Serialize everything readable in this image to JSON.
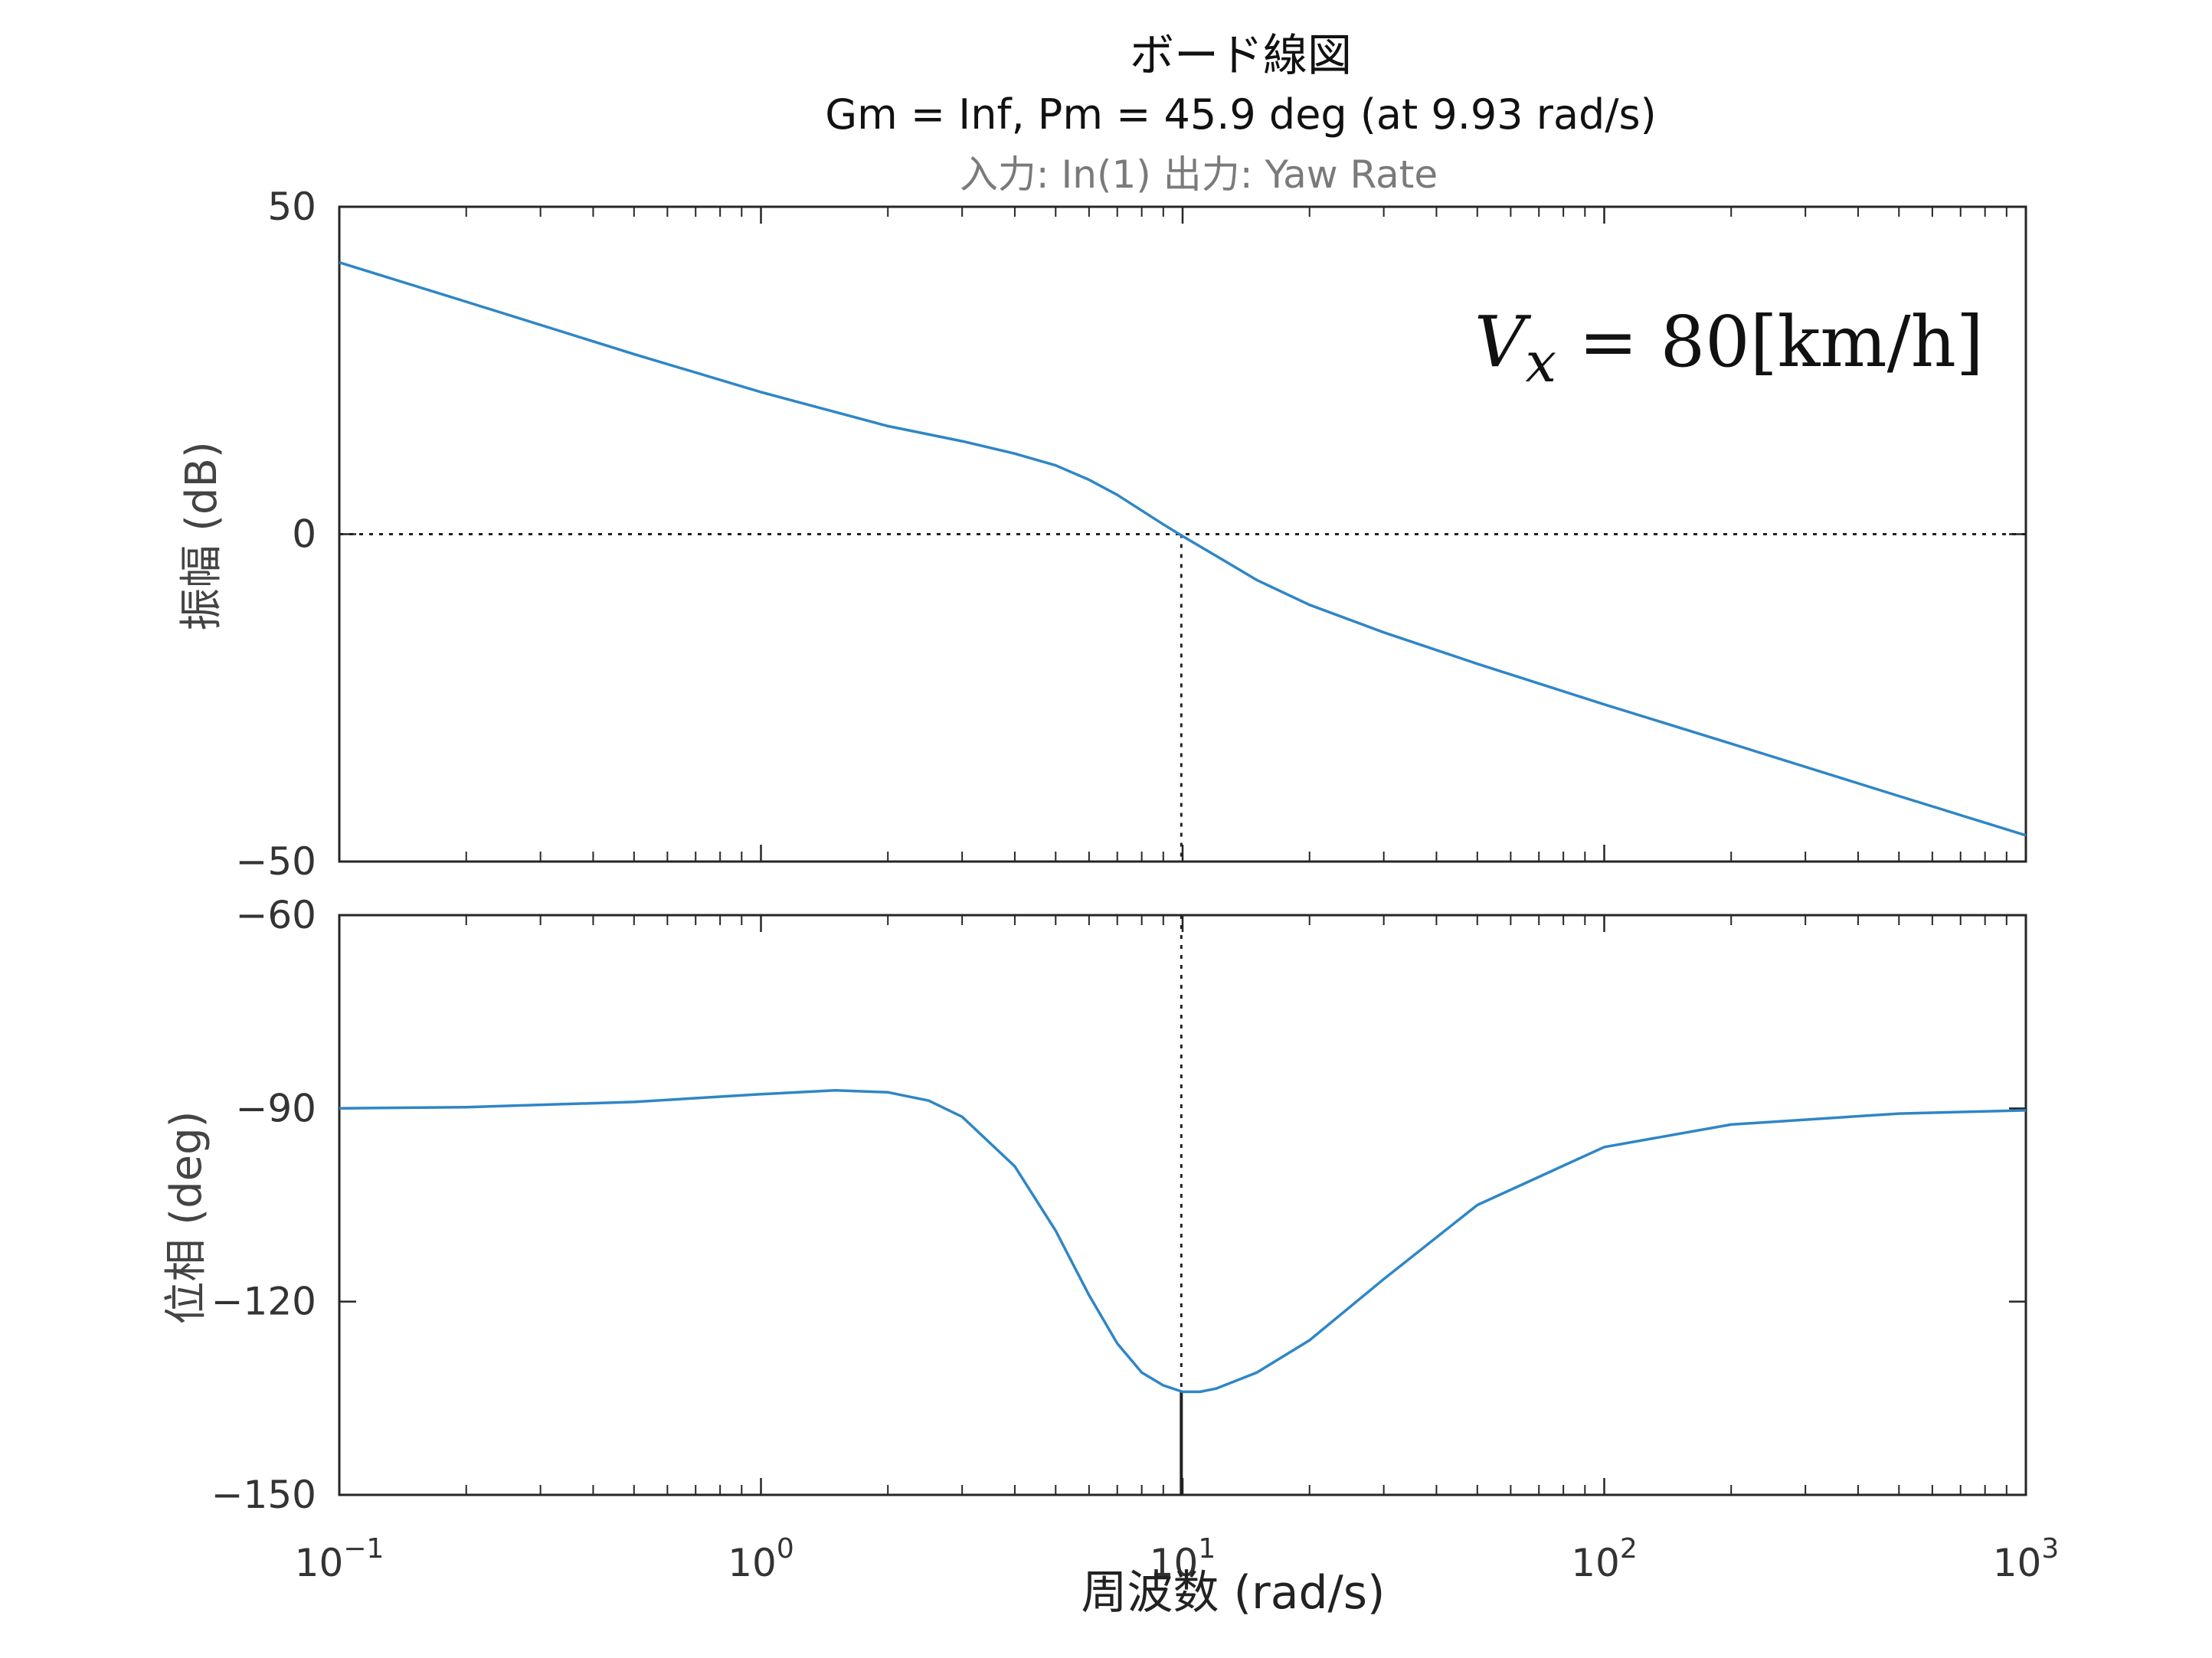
{
  "chart_data": {
    "type": "line",
    "title": "ボード線図",
    "subtitle": "Gm = Inf,  Pm = 45.9 deg (at 9.93 rad/s)",
    "io_title": "入力: In(1)  出力: Yaw Rate",
    "annotation": "V_x = 80[km/h]",
    "annotation_parts": {
      "v": "V",
      "sub": "x",
      "rest": " = 80[km/h]"
    },
    "xlabel": "周波数 (rad/s)",
    "x_scale": "log",
    "xlim": [
      0.1,
      1000
    ],
    "x_ticks": [
      {
        "base": "10",
        "exp": "−1"
      },
      {
        "base": "10",
        "exp": "0"
      },
      {
        "base": "10",
        "exp": "1"
      },
      {
        "base": "10",
        "exp": "2"
      },
      {
        "base": "10",
        "exp": "3"
      }
    ],
    "crossover_frequency": 9.93,
    "color": "#2f86c6",
    "subplots": [
      {
        "name": "magnitude",
        "ylabel": "振幅 (dB)",
        "ylim": [
          -50,
          50
        ],
        "y_ticks": [
          50,
          0,
          -50
        ],
        "y_tick_labels": [
          "50",
          "0",
          "−50"
        ],
        "zero_line": 0,
        "series": [
          {
            "x": [
              0.1,
              0.2,
              0.5,
              1,
              2,
              3,
              4,
              5,
              6,
              7,
              8,
              9,
              10,
              12,
              15,
              20,
              30,
              50,
              100,
              200,
              500,
              1000
            ],
            "y": [
              41.5,
              35.5,
              27.5,
              21.7,
              16.5,
              14.2,
              12.3,
              10.5,
              8.3,
              6.0,
              3.6,
              1.5,
              -0.3,
              -3.3,
              -7.0,
              -10.8,
              -15.0,
              -19.8,
              -26.0,
              -32.0,
              -40.0,
              -46.0
            ]
          }
        ]
      },
      {
        "name": "phase",
        "ylabel": "位相 (deg)",
        "ylim": [
          -150,
          -60
        ],
        "y_ticks": [
          -60,
          -90,
          -120,
          -150
        ],
        "y_tick_labels": [
          "−60",
          "−90",
          "−120",
          "−150"
        ],
        "series": [
          {
            "x": [
              0.1,
              0.2,
              0.5,
              1,
              1.5,
              2,
              2.5,
              3,
              4,
              5,
              6,
              7,
              8,
              9,
              10,
              11,
              12,
              15,
              20,
              30,
              50,
              100,
              200,
              500,
              1000
            ],
            "y": [
              -90.0,
              -89.8,
              -89.0,
              -87.8,
              -87.2,
              -87.5,
              -88.8,
              -91.3,
              -99.0,
              -109.0,
              -119.0,
              -126.5,
              -131.0,
              -133.0,
              -134.0,
              -134.0,
              -133.5,
              -131.0,
              -126.0,
              -116.5,
              -105.0,
              -96.0,
              -92.5,
              -90.8,
              -90.3
            ]
          }
        ]
      }
    ]
  }
}
